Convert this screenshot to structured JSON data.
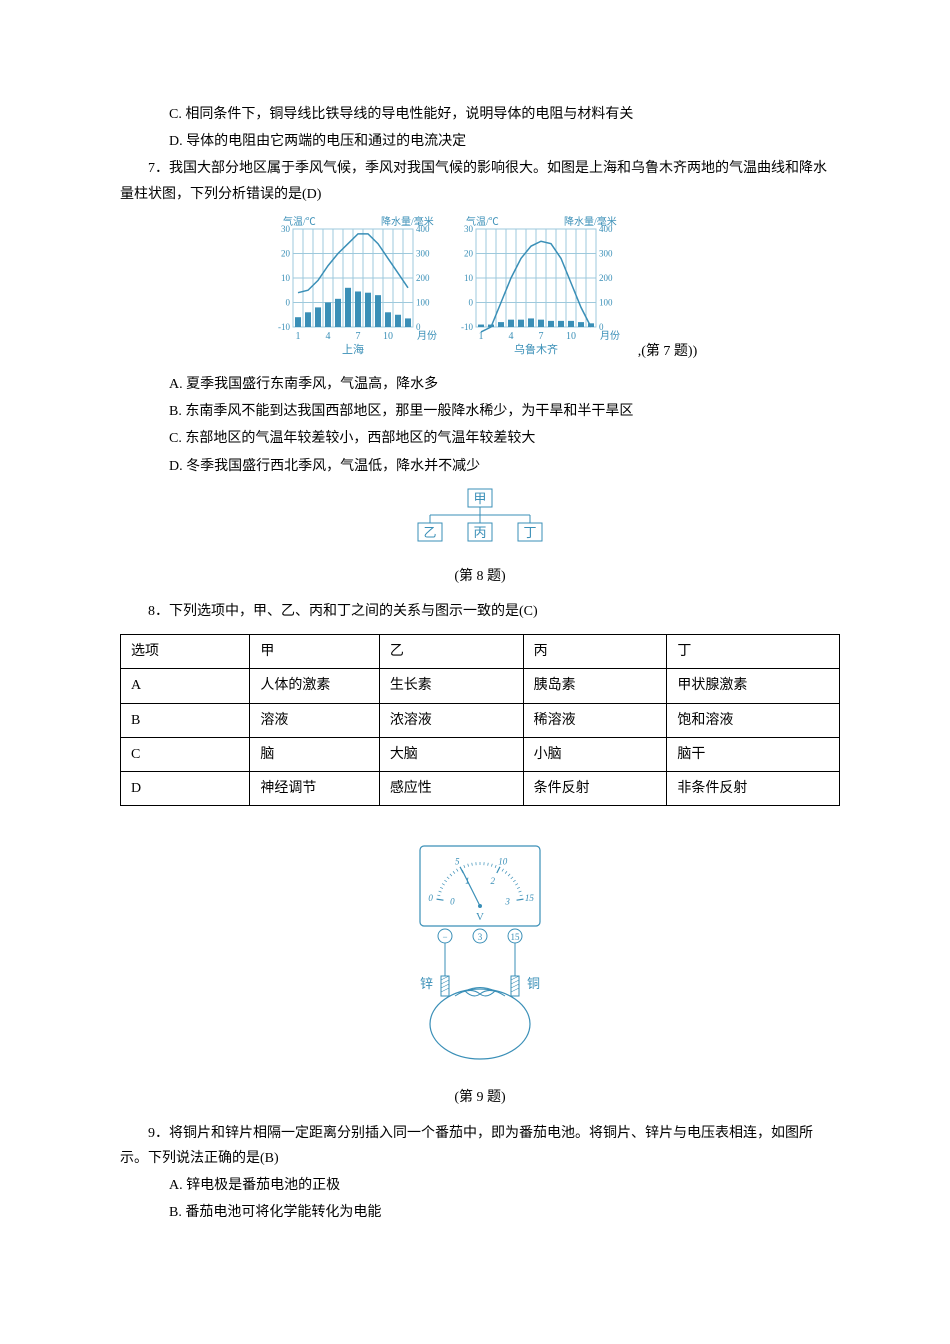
{
  "q6": {
    "optC": "C. 相同条件下，铜导线比铁导线的导电性能好，说明导体的电阻与材料有关",
    "optD": "D. 导体的电阻由它两端的电压和通过的电流决定"
  },
  "q7": {
    "stem": "7．我国大部分地区属于季风气候，季风对我国气候的影响很大。如图是上海和乌鲁木齐两地的气温曲线和降水量柱状图，下列分析错误的是(D)",
    "caption": ",(第 7 题))",
    "optA": "A. 夏季我国盛行东南季风，气温高，降水多",
    "optB": "B. 东南季风不能到达我国西部地区，那里一般降水稀少，为干旱和半干旱区",
    "optC": "C. 东部地区的气温年较差较小，西部地区的气温年较差较大",
    "optD": "D. 冬季我国盛行西北季风，气温低，降水并不减少",
    "chart_shanghai": {
      "name": "上海",
      "temp_axis_label": "气温/℃",
      "precip_axis_label": "降水量/毫米",
      "x_axis_label": "月份",
      "temp_yticks": [
        -10,
        0,
        10,
        20,
        30
      ],
      "precip_yticks": [
        0,
        100,
        200,
        300,
        400
      ],
      "x_ticks": [
        1,
        4,
        7,
        10
      ],
      "months": [
        1,
        2,
        3,
        4,
        5,
        6,
        7,
        8,
        9,
        10,
        11,
        12
      ],
      "temps": [
        4,
        5,
        9,
        15,
        20,
        24,
        28,
        28,
        24,
        18,
        12,
        6
      ],
      "precip": [
        40,
        60,
        80,
        100,
        115,
        160,
        145,
        140,
        130,
        60,
        50,
        35
      ],
      "line_color": "#3a8fb7",
      "bar_color": "#3a8fb7",
      "grid_color": "#9ec9dc",
      "text_color": "#3a8fb7",
      "temp_ylim": [
        -10,
        30
      ],
      "precip_ylim": [
        0,
        400
      ]
    },
    "chart_urumqi": {
      "name": "乌鲁木齐",
      "temp_axis_label": "气温/℃",
      "precip_axis_label": "降水量/毫米",
      "x_axis_label": "月份",
      "temp_yticks": [
        -10,
        0,
        10,
        20,
        30
      ],
      "precip_yticks": [
        0,
        100,
        200,
        300,
        400
      ],
      "x_ticks": [
        1,
        4,
        7,
        10
      ],
      "months": [
        1,
        2,
        3,
        4,
        5,
        6,
        7,
        8,
        9,
        10,
        11,
        12
      ],
      "temps": [
        -12,
        -10,
        0,
        10,
        18,
        23,
        25,
        24,
        18,
        8,
        -2,
        -10
      ],
      "precip": [
        10,
        10,
        20,
        30,
        30,
        35,
        30,
        25,
        25,
        25,
        20,
        15
      ],
      "line_color": "#3a8fb7",
      "bar_color": "#3a8fb7",
      "grid_color": "#9ec9dc",
      "text_color": "#3a8fb7",
      "temp_ylim": [
        -10,
        30
      ],
      "precip_ylim": [
        0,
        400
      ]
    }
  },
  "q8": {
    "tree": {
      "top": "甲",
      "children": [
        "乙",
        "丙",
        "丁"
      ],
      "color": "#3a8fb7"
    },
    "caption": "(第 8 题)",
    "stem": "8．下列选项中，甲、乙、丙和丁之间的关系与图示一致的是(C)",
    "table": {
      "headers": [
        "选项",
        "甲",
        "乙",
        "丙",
        "丁"
      ],
      "rows": [
        [
          "A",
          "人体的激素",
          "生长素",
          "胰岛素",
          "甲状腺激素"
        ],
        [
          "B",
          "溶液",
          "浓溶液",
          "稀溶液",
          "饱和溶液"
        ],
        [
          "C",
          "脑",
          "大脑",
          "小脑",
          "脑干"
        ],
        [
          "D",
          "神经调节",
          "感应性",
          "条件反射",
          "非条件反射"
        ]
      ],
      "col_widths": [
        "18%",
        "18%",
        "20%",
        "20%",
        "24%"
      ]
    }
  },
  "q9": {
    "fig": {
      "caption": "(第 9 题)",
      "color": "#3a8fb7",
      "scale_top": {
        "ticks": [
          "0",
          "5",
          "10",
          "15"
        ]
      },
      "scale_bottom": {
        "ticks": [
          "0",
          "1",
          "2",
          "3"
        ]
      },
      "unit": "V",
      "terminals": [
        "−",
        "3",
        "15"
      ],
      "left_electrode": "锌",
      "right_electrode": "铜"
    },
    "stem": "9．将铜片和锌片相隔一定距离分别插入同一个番茄中，即为番茄电池。将铜片、锌片与电压表相连，如图所示。下列说法正确的是(B)",
    "optA": "A. 锌电极是番茄电池的正极",
    "optB": "B. 番茄电池可将化学能转化为电能"
  }
}
